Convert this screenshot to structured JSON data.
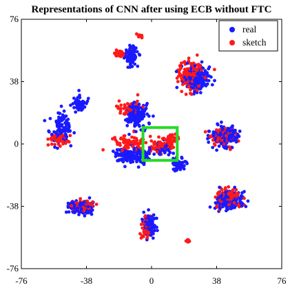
{
  "chart_data": {
    "type": "scatter",
    "title": "Representations of CNN after using ECB without FTC",
    "xlabel": "",
    "ylabel": "",
    "xlim": [
      -76,
      76
    ],
    "ylim": [
      -76,
      76
    ],
    "xticks": [
      "-76",
      "-38",
      "0",
      "38",
      "76"
    ],
    "yticks": [
      "76",
      "38",
      "0",
      "-38",
      "-76"
    ],
    "grid": false,
    "legend": {
      "position": "top-right",
      "entries": [
        "real",
        "sketch"
      ]
    },
    "colors": {
      "real": "#1a1aff",
      "sketch": "#ff1a1a",
      "highlight": "#22dd22"
    },
    "highlight_box": {
      "x": [
        -5,
        15
      ],
      "y": [
        -10,
        10
      ]
    },
    "series": [
      {
        "name": "real",
        "clusters": [
          {
            "center": [
              -12,
              54
            ],
            "spread": [
              3.2,
              5.0
            ],
            "points": 90
          },
          {
            "center": [
              26,
              40
            ],
            "spread": [
              5.5,
              6.0
            ],
            "points": 220
          },
          {
            "center": [
              -53,
              10
            ],
            "spread": [
              5.5,
              7.0
            ],
            "points": 100
          },
          {
            "center": [
              -43,
              25
            ],
            "spread": [
              4.0,
              4.0
            ],
            "points": 60
          },
          {
            "center": [
              -9,
              18
            ],
            "spread": [
              6.0,
              6.0
            ],
            "points": 140
          },
          {
            "center": [
              -15,
              -7
            ],
            "spread": [
              5.5,
              3.5
            ],
            "points": 90
          },
          {
            "center": [
              16,
              -12
            ],
            "spread": [
              3.5,
              3.0
            ],
            "points": 60
          },
          {
            "center": [
              7,
              -3
            ],
            "spread": [
              3.0,
              3.5
            ],
            "points": 40
          },
          {
            "center": [
              -6,
              -7
            ],
            "spread": [
              5.0,
              4.5
            ],
            "points": 70
          },
          {
            "center": [
              43,
              5
            ],
            "spread": [
              6.5,
              5.0
            ],
            "points": 170
          },
          {
            "center": [
              -41,
              -39
            ],
            "spread": [
              6.0,
              3.0
            ],
            "points": 150
          },
          {
            "center": [
              45,
              -35
            ],
            "spread": [
              6.0,
              5.0
            ],
            "points": 180
          },
          {
            "center": [
              -1,
              -50
            ],
            "spread": [
              2.8,
              6.5
            ],
            "points": 110
          }
        ]
      },
      {
        "name": "sketch",
        "clusters": [
          {
            "center": [
              -18,
              55
            ],
            "spread": [
              4.0,
              2.0
            ],
            "points": 40
          },
          {
            "center": [
              -7,
              66
            ],
            "spread": [
              1.5,
              1.5
            ],
            "points": 10
          },
          {
            "center": [
              23,
              42
            ],
            "spread": [
              6.0,
              7.0
            ],
            "points": 150
          },
          {
            "center": [
              -55,
              3
            ],
            "spread": [
              5.0,
              3.5
            ],
            "points": 60
          },
          {
            "center": [
              -12,
              22
            ],
            "spread": [
              5.5,
              4.0
            ],
            "points": 70
          },
          {
            "center": [
              -12,
              0
            ],
            "spread": [
              8.0,
              3.5
            ],
            "points": 80
          },
          {
            "center": [
              5,
              -1
            ],
            "spread": [
              7.0,
              4.0
            ],
            "points": 60
          },
          {
            "center": [
              12,
              3
            ],
            "spread": [
              3.0,
              3.0
            ],
            "points": 30
          },
          {
            "center": [
              42,
              5
            ],
            "spread": [
              6.0,
              4.5
            ],
            "points": 90
          },
          {
            "center": [
              -40,
              -38
            ],
            "spread": [
              5.5,
              3.0
            ],
            "points": 70
          },
          {
            "center": [
              45,
              -33
            ],
            "spread": [
              6.5,
              5.0
            ],
            "points": 110
          },
          {
            "center": [
              -3,
              -52
            ],
            "spread": [
              3.0,
              5.0
            ],
            "points": 50
          },
          {
            "center": [
              21,
              -59
            ],
            "spread": [
              1.2,
              1.2
            ],
            "points": 8
          }
        ]
      }
    ]
  }
}
